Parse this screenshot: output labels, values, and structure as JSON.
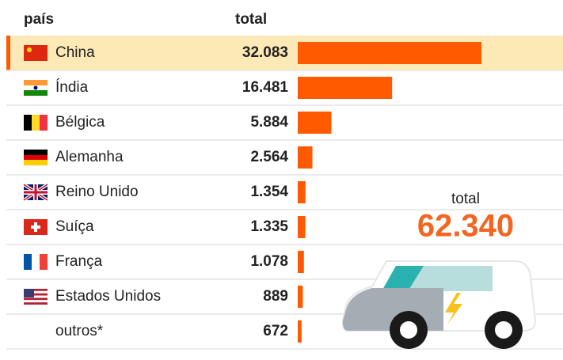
{
  "chart_data": {
    "type": "bar",
    "column_headers": [
      "país",
      "total"
    ],
    "categories": [
      "China",
      "Índia",
      "Bélgica",
      "Alemanha",
      "Reino Unido",
      "Suíça",
      "França",
      "Estados Unidos",
      "outros*"
    ],
    "values": [
      32083,
      16481,
      5884,
      2564,
      1354,
      1335,
      1078,
      889,
      672
    ],
    "value_labels": [
      "32.083",
      "16.481",
      "5.884",
      "2.564",
      "1.354",
      "1.335",
      "1.078",
      "889",
      "672"
    ],
    "color": "#ff5a00",
    "highlight_color": "#fde9b5",
    "annotation": {
      "label": "total",
      "value": "62.340"
    }
  }
}
